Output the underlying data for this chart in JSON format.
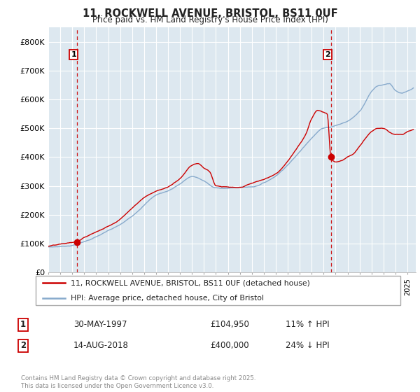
{
  "title_line1": "11, ROCKWELL AVENUE, BRISTOL, BS11 0UF",
  "title_line2": "Price paid vs. HM Land Registry's House Price Index (HPI)",
  "ylim": [
    0,
    850000
  ],
  "yticks": [
    0,
    100000,
    200000,
    300000,
    400000,
    500000,
    600000,
    700000,
    800000
  ],
  "ytick_labels": [
    "£0",
    "£100K",
    "£200K",
    "£300K",
    "£400K",
    "£500K",
    "£600K",
    "£700K",
    "£800K"
  ],
  "sale1_date": 1997.41,
  "sale1_price": 104950,
  "sale2_date": 2018.62,
  "sale2_price": 400000,
  "red_line_color": "#cc0000",
  "blue_line_color": "#88aacc",
  "background_color": "#dde8f0",
  "grid_color": "#ffffff",
  "legend_label_red": "11, ROCKWELL AVENUE, BRISTOL, BS11 0UF (detached house)",
  "legend_label_blue": "HPI: Average price, detached house, City of Bristol",
  "table_row1": [
    "1",
    "30-MAY-1997",
    "£104,950",
    "11% ↑ HPI"
  ],
  "table_row2": [
    "2",
    "14-AUG-2018",
    "£400,000",
    "24% ↓ HPI"
  ],
  "footer": "Contains HM Land Registry data © Crown copyright and database right 2025.\nThis data is licensed under the Open Government Licence v3.0.",
  "xmin": 1995,
  "xmax": 2025.7
}
